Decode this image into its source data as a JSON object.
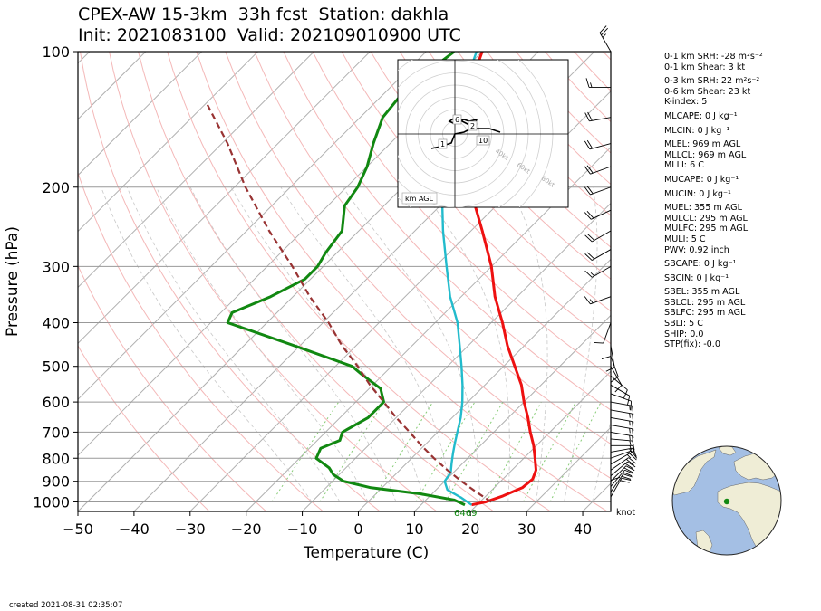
{
  "title_line1": "CPEX-AW 15-3km  33h fcst  Station: dakhla",
  "title_line2": "Init: 2021083100  Valid: 202109010900 UTC",
  "created": "created 2021-08-31 02:35:07",
  "colors": {
    "temperature": "#ee1111",
    "dewpoint": "#118811",
    "virtual_temp": "#22bbcc",
    "parcel": "#993333",
    "isotherm": "#b0b0b0",
    "dry_adiabat": "#f4b8b8",
    "moist_adiabat": "#c8c8c8",
    "mixing_ratio": "#88cc77",
    "ocean": "#a4bfe4",
    "land": "#efedd6"
  },
  "params": [
    {
      "label": "0-1 km SRH: -28 m²s⁻²"
    },
    {
      "label": "0-1 km Shear: 3 kt"
    },
    {
      "label": "0-3 km SRH: 22 m²s⁻²",
      "gap": true
    },
    {
      "label": "0-6 km Shear: 23 kt"
    },
    {
      "label": "K-index: 5"
    },
    {
      "label": "MLCAPE: 0 J kg⁻¹",
      "gap": true
    },
    {
      "label": "MLCIN: 0 J kg⁻¹",
      "gap": true
    },
    {
      "label": "MLEL: 969 m AGL",
      "gap": true
    },
    {
      "label": "MLLCL: 969 m AGL"
    },
    {
      "label": "MLLI: 6 C"
    },
    {
      "label": "MUCAPE: 0 J kg⁻¹",
      "gap": true
    },
    {
      "label": "MUCIN: 0 J kg⁻¹",
      "gap": true
    },
    {
      "label": "MUEL: 355 m AGL",
      "gap": true
    },
    {
      "label": "MULCL: 295 m AGL"
    },
    {
      "label": "MULFC: 295 m AGL"
    },
    {
      "label": "MULI: 5 C"
    },
    {
      "label": "PWV: 0.92 inch"
    },
    {
      "label": "SBCAPE: 0 J kg⁻¹",
      "gap": true
    },
    {
      "label": "SBCIN: 0 J kg⁻¹",
      "gap": true
    },
    {
      "label": "SBEL: 355 m AGL",
      "gap": true
    },
    {
      "label": "SBLCL: 295 m AGL"
    },
    {
      "label": "SBLFC: 295 m AGL"
    },
    {
      "label": "SBLI: 5 C"
    },
    {
      "label": "SHIP: 0.0"
    },
    {
      "label": "STP(fix): -0.0"
    }
  ],
  "hodograph": {
    "label": "km AGL",
    "ring_labels": [
      "40kt",
      "60kt",
      "80kt"
    ],
    "height_labels": [
      "6",
      "2",
      "1",
      "10"
    ]
  },
  "barb_unit": "knot",
  "surface_label": "6469",
  "chart_data": {
    "type": "line",
    "title": "CPEX-AW 15-3km  33h fcst  Station: dakhla",
    "subtitle": "Init: 2021083100  Valid: 202109010900 UTC",
    "xlabel": "Temperature (C)",
    "ylabel": "Pressure (hPa)",
    "x_range": [
      -50,
      45
    ],
    "y_range": [
      1050,
      100
    ],
    "y_scale": "log",
    "x_ticks": [
      -50,
      -40,
      -30,
      -20,
      -10,
      0,
      10,
      20,
      30,
      40
    ],
    "y_ticks": [
      1000,
      900,
      800,
      700,
      600,
      500,
      400,
      300,
      200,
      100
    ],
    "skew": "45-degree skewed isotherms",
    "series": [
      {
        "name": "temperature",
        "points": [
          [
            1015,
            19
          ],
          [
            1000,
            21
          ],
          [
            970,
            23
          ],
          [
            930,
            25
          ],
          [
            890,
            25.3
          ],
          [
            850,
            24.3
          ],
          [
            800,
            22
          ],
          [
            750,
            19.5
          ],
          [
            700,
            16.5
          ],
          [
            650,
            13.5
          ],
          [
            600,
            10
          ],
          [
            550,
            6.5
          ],
          [
            500,
            2
          ],
          [
            450,
            -3
          ],
          [
            400,
            -8
          ],
          [
            350,
            -14
          ],
          [
            300,
            -20
          ],
          [
            250,
            -28
          ],
          [
            200,
            -38
          ],
          [
            170,
            -45.5
          ],
          [
            150,
            -50
          ],
          [
            125,
            -55
          ],
          [
            100,
            -60
          ]
        ]
      },
      {
        "name": "dewpoint",
        "points": [
          [
            1015,
            17.8
          ],
          [
            990,
            15
          ],
          [
            960,
            8
          ],
          [
            930,
            -2
          ],
          [
            900,
            -8
          ],
          [
            870,
            -11
          ],
          [
            840,
            -13
          ],
          [
            800,
            -17
          ],
          [
            760,
            -18
          ],
          [
            730,
            -16
          ],
          [
            700,
            -17
          ],
          [
            650,
            -15
          ],
          [
            600,
            -15
          ],
          [
            560,
            -18
          ],
          [
            520,
            -24
          ],
          [
            500,
            -27
          ],
          [
            450,
            -41
          ],
          [
            400,
            -57
          ],
          [
            380,
            -58
          ],
          [
            350,
            -54
          ],
          [
            320,
            -51
          ],
          [
            300,
            -51
          ],
          [
            280,
            -52
          ],
          [
            250,
            -53
          ],
          [
            220,
            -57
          ],
          [
            200,
            -58
          ],
          [
            180,
            -60
          ],
          [
            160,
            -63
          ],
          [
            140,
            -66
          ],
          [
            120,
            -67
          ],
          [
            100,
            -65
          ]
        ]
      },
      {
        "name": "virtual temperature",
        "points": [
          [
            1015,
            19
          ],
          [
            980,
            16
          ],
          [
            940,
            12
          ],
          [
            900,
            10
          ],
          [
            860,
            9.5
          ],
          [
            820,
            8
          ],
          [
            780,
            6.5
          ],
          [
            740,
            5
          ],
          [
            700,
            3.5
          ],
          [
            650,
            1.5
          ],
          [
            600,
            -1
          ],
          [
            550,
            -4
          ],
          [
            500,
            -7.5
          ],
          [
            450,
            -11.5
          ],
          [
            400,
            -16
          ],
          [
            350,
            -22
          ],
          [
            300,
            -28
          ],
          [
            250,
            -35
          ],
          [
            200,
            -43
          ],
          [
            170,
            -49
          ],
          [
            150,
            -53
          ],
          [
            125,
            -56
          ],
          [
            100,
            -61
          ]
        ]
      },
      {
        "name": "parcel",
        "points": [
          [
            1000,
            22
          ],
          [
            950,
            17.5
          ],
          [
            900,
            13
          ],
          [
            850,
            8.5
          ],
          [
            800,
            4
          ],
          [
            750,
            -0.5
          ],
          [
            700,
            -5
          ],
          [
            650,
            -10
          ],
          [
            600,
            -15
          ],
          [
            550,
            -20.5
          ],
          [
            500,
            -26
          ],
          [
            450,
            -32.5
          ],
          [
            400,
            -39
          ],
          [
            350,
            -47
          ],
          [
            300,
            -55.5
          ],
          [
            250,
            -66
          ],
          [
            200,
            -78
          ],
          [
            160,
            -89
          ],
          [
            130,
            -100
          ]
        ]
      }
    ],
    "hodograph_points": [
      [
        -13,
        -8
      ],
      [
        -8,
        -7
      ],
      [
        -2,
        -5
      ],
      [
        0,
        0
      ],
      [
        5,
        1
      ],
      [
        9,
        3
      ],
      [
        11,
        5
      ],
      [
        12,
        8
      ],
      [
        8,
        7
      ],
      [
        5,
        8
      ],
      [
        2,
        7
      ],
      [
        -1,
        6
      ],
      [
        -3,
        7
      ],
      [
        0,
        9
      ],
      [
        6,
        6
      ],
      [
        12,
        3
      ],
      [
        19,
        3
      ],
      [
        25,
        1
      ]
    ],
    "wind_barbs": [
      {
        "p": 1000,
        "speed": 10,
        "dir": 0
      },
      {
        "p": 975,
        "speed": 20,
        "dir": 30
      },
      {
        "p": 950,
        "speed": 20,
        "dir": 35
      },
      {
        "p": 925,
        "speed": 20,
        "dir": 40
      },
      {
        "p": 900,
        "speed": 20,
        "dir": 45
      },
      {
        "p": 875,
        "speed": 20,
        "dir": 50
      },
      {
        "p": 850,
        "speed": 20,
        "dir": 55
      },
      {
        "p": 825,
        "speed": 15,
        "dir": 60
      },
      {
        "p": 800,
        "speed": 15,
        "dir": 70
      },
      {
        "p": 775,
        "speed": 15,
        "dir": 80
      },
      {
        "p": 750,
        "speed": 15,
        "dir": 90
      },
      {
        "p": 725,
        "speed": 15,
        "dir": 95
      },
      {
        "p": 700,
        "speed": 15,
        "dir": 100
      },
      {
        "p": 675,
        "speed": 15,
        "dir": 100
      },
      {
        "p": 650,
        "speed": 15,
        "dir": 100
      },
      {
        "p": 625,
        "speed": 15,
        "dir": 100
      },
      {
        "p": 600,
        "speed": 15,
        "dir": 100
      },
      {
        "p": 575,
        "speed": 10,
        "dir": 110
      },
      {
        "p": 550,
        "speed": 10,
        "dir": 120
      },
      {
        "p": 525,
        "speed": 10,
        "dir": 130
      },
      {
        "p": 500,
        "speed": 10,
        "dir": 150
      },
      {
        "p": 475,
        "speed": 10,
        "dir": 160
      },
      {
        "p": 450,
        "speed": 10,
        "dir": 170
      },
      {
        "p": 425,
        "speed": 10,
        "dir": 180
      },
      {
        "p": 400,
        "speed": 10,
        "dir": 200
      },
      {
        "p": 350,
        "speed": 15,
        "dir": 250
      },
      {
        "p": 300,
        "speed": 15,
        "dir": 240
      },
      {
        "p": 275,
        "speed": 20,
        "dir": 240
      },
      {
        "p": 250,
        "speed": 20,
        "dir": 240
      },
      {
        "p": 225,
        "speed": 20,
        "dir": 245
      },
      {
        "p": 200,
        "speed": 20,
        "dir": 250
      },
      {
        "p": 180,
        "speed": 20,
        "dir": 250
      },
      {
        "p": 160,
        "speed": 20,
        "dir": 255
      },
      {
        "p": 140,
        "speed": 20,
        "dir": 260
      },
      {
        "p": 120,
        "speed": 15,
        "dir": 270
      },
      {
        "p": 100,
        "speed": 25,
        "dir": 330
      }
    ],
    "station": {
      "lat": 23.7,
      "lon": -15.9
    }
  }
}
